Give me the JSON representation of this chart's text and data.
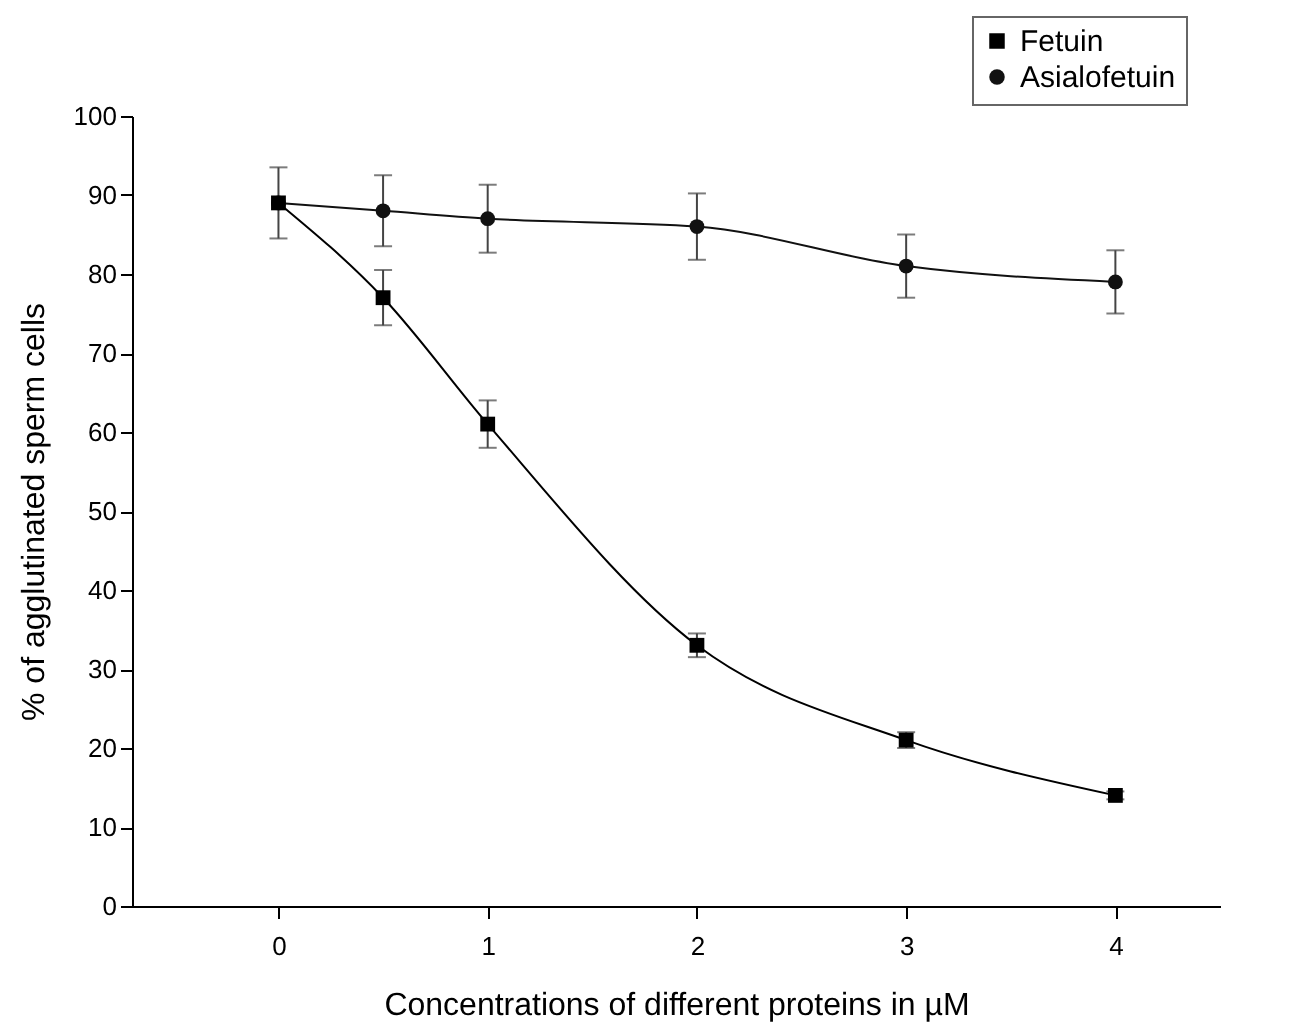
{
  "chart_data": {
    "type": "line",
    "xlabel": "Concentrations of different proteins in µM",
    "ylabel": "% of agglutinated sperm cells",
    "x": [
      0,
      0.5,
      1,
      2,
      3,
      4
    ],
    "series": [
      {
        "name": "Fetuin",
        "color": "#000000",
        "marker": "square",
        "values": [
          89,
          77,
          61,
          33,
          21,
          14
        ],
        "errors": [
          4.5,
          3.5,
          3,
          1.5,
          1,
          0.5
        ]
      },
      {
        "name": "Asialofetuin",
        "color": "#111111",
        "marker": "circle",
        "values": [
          89,
          88,
          87,
          86,
          81,
          79
        ],
        "errors": [
          null,
          4.5,
          4.3,
          4.2,
          4,
          4
        ]
      }
    ],
    "xlim": [
      -0.7,
      4.5
    ],
    "xticks": [
      0,
      1,
      2,
      3,
      4
    ],
    "ylim": [
      0,
      100
    ],
    "yticks": [
      0,
      10,
      20,
      30,
      40,
      50,
      60,
      70,
      80,
      90,
      100
    ],
    "grid": false,
    "legend": "top right",
    "line_style": "solid"
  }
}
